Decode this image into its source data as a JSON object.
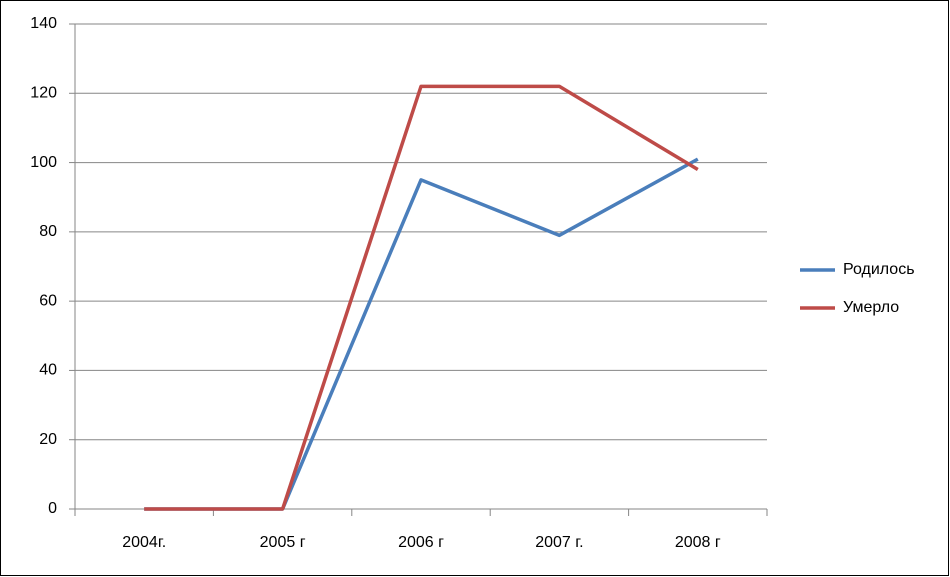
{
  "chart_data": {
    "type": "line",
    "categories": [
      "2004г.",
      "2005 г",
      "2006 г",
      "2007 г.",
      "2008 г"
    ],
    "series": [
      {
        "name": "Родилось",
        "color": "#4a7ebb",
        "values": [
          0,
          0,
          95,
          79,
          101
        ]
      },
      {
        "name": "Умерло",
        "color": "#be4b48",
        "values": [
          0,
          0,
          122,
          122,
          98
        ]
      }
    ],
    "ylim": [
      0,
      140
    ],
    "yticks": [
      0,
      20,
      40,
      60,
      80,
      100,
      120,
      140
    ],
    "grid": true,
    "legend": "right"
  }
}
